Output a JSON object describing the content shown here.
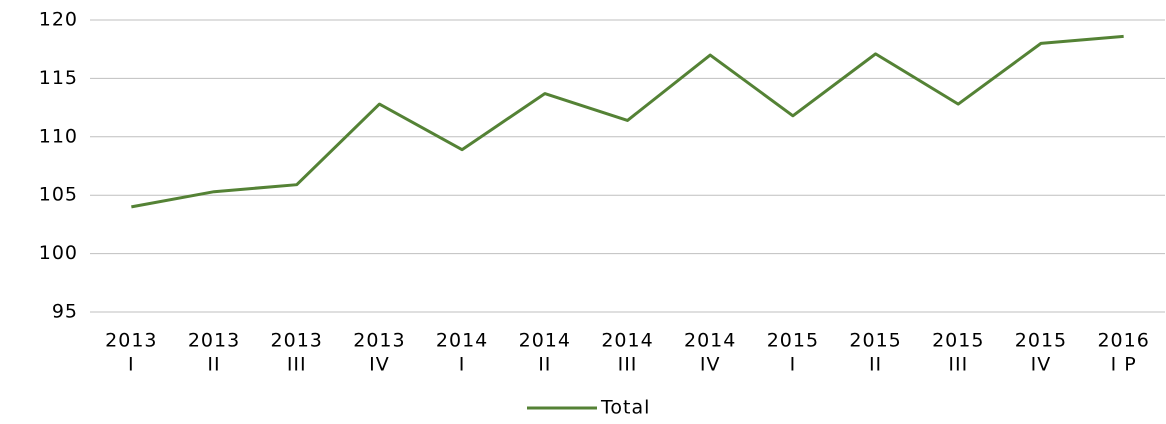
{
  "chart_data": {
    "type": "line",
    "categories": [
      [
        "2013",
        "I"
      ],
      [
        "2013",
        "II"
      ],
      [
        "2013",
        "III"
      ],
      [
        "2013",
        "IV"
      ],
      [
        "2014",
        "I"
      ],
      [
        "2014",
        "II"
      ],
      [
        "2014",
        "III"
      ],
      [
        "2014",
        "IV"
      ],
      [
        "2015",
        "I"
      ],
      [
        "2015",
        "II"
      ],
      [
        "2015",
        "III"
      ],
      [
        "2015",
        "IV"
      ],
      [
        "2016",
        "I P"
      ]
    ],
    "series": [
      {
        "name": "Total",
        "color": "#548235",
        "values": [
          104.0,
          105.3,
          105.9,
          112.8,
          108.9,
          113.7,
          111.4,
          117.0,
          111.8,
          117.1,
          112.8,
          118.0,
          118.6
        ]
      }
    ],
    "ylim": [
      95,
      120
    ],
    "yticks": [
      95,
      100,
      105,
      110,
      115,
      120
    ],
    "grid": true,
    "legend": "bottom"
  }
}
